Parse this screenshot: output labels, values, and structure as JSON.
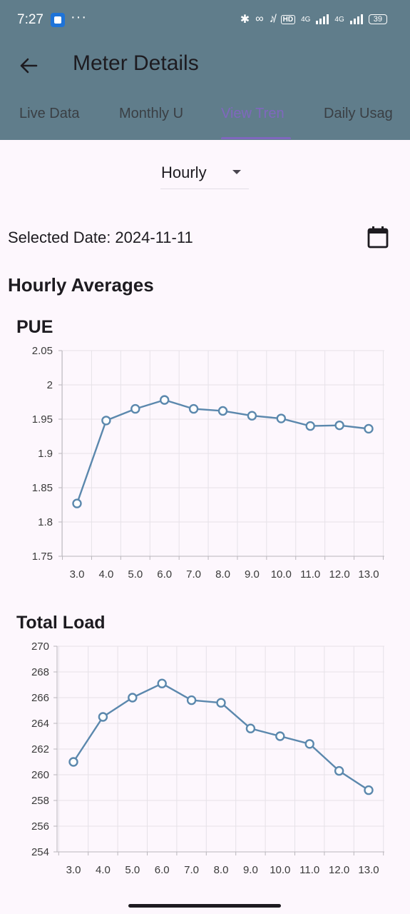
{
  "status_bar": {
    "time": "7:27",
    "dots": "···",
    "hd_badge": "HD",
    "network_1": "4G",
    "network_2": "4G",
    "battery": "39"
  },
  "app_bar": {
    "back_icon": "arrow-left-icon",
    "title": "Meter Details"
  },
  "tabs": [
    {
      "label": "Live Data",
      "active": false
    },
    {
      "label": "Monthly U",
      "active": false
    },
    {
      "label": "View Tren",
      "active": true
    },
    {
      "label": "Daily Usag",
      "active": false
    }
  ],
  "colors": {
    "app_bar_bg": "#607d8b",
    "accent": "#7f67be",
    "series": "#5b88ad",
    "background": "#fdf7fd"
  },
  "dropdown": {
    "selected": "Hourly"
  },
  "date_row": {
    "label": "Selected Date: 2024-11-11",
    "calendar_icon": "calendar-icon"
  },
  "section_title": "Hourly Averages",
  "chart_data": [
    {
      "type": "line",
      "title": "PUE",
      "xlabel": "",
      "ylabel": "",
      "x": [
        3.0,
        4.0,
        5.0,
        6.0,
        7.0,
        8.0,
        9.0,
        10.0,
        11.0,
        12.0,
        13.0
      ],
      "x_tick_labels": [
        "3.0",
        "4.0",
        "5.0",
        "6.0",
        "7.0",
        "8.0",
        "9.0",
        "10.0",
        "11.0",
        "12.0",
        "13.0"
      ],
      "y_ticks": [
        "2.05",
        "2",
        "1.95",
        "1.9",
        "1.85",
        "1.8",
        "1.75"
      ],
      "ylim": [
        1.75,
        2.05
      ],
      "grid": true,
      "series": [
        {
          "values": [
            1.827,
            1.948,
            1.965,
            1.978,
            1.965,
            1.962,
            1.955,
            1.951,
            1.94,
            1.941,
            1.936
          ]
        }
      ]
    },
    {
      "type": "line",
      "title": "Total Load",
      "xlabel": "",
      "ylabel": "",
      "x": [
        3.0,
        4.0,
        5.0,
        6.0,
        7.0,
        8.0,
        9.0,
        10.0,
        11.0,
        12.0,
        13.0
      ],
      "x_tick_labels": [
        "3.0",
        "4.0",
        "5.0",
        "6.0",
        "7.0",
        "8.0",
        "9.0",
        "10.0",
        "11.0",
        "12.0",
        "13.0"
      ],
      "y_ticks": [
        "270",
        "268",
        "266",
        "264",
        "262",
        "260",
        "258",
        "256",
        "254"
      ],
      "ylim": [
        254,
        270
      ],
      "grid": true,
      "series": [
        {
          "values": [
            261.0,
            264.5,
            266.0,
            267.1,
            265.8,
            265.6,
            263.6,
            263.0,
            262.4,
            260.3,
            258.8
          ]
        }
      ]
    }
  ]
}
